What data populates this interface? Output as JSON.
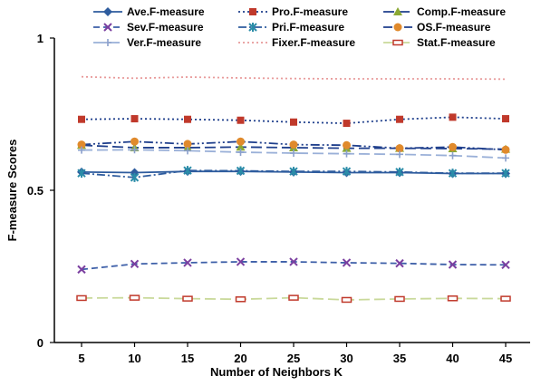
{
  "chart_data": {
    "type": "line",
    "xlabel": "Number of Neighbors K",
    "ylabel": "F-measure Scores",
    "x": [
      5,
      10,
      15,
      20,
      25,
      30,
      35,
      40,
      45
    ],
    "x_tick_labels": [
      "5",
      "10",
      "15",
      "20",
      "25",
      "30",
      "35",
      "40",
      "45"
    ],
    "ylim": [
      0,
      1
    ],
    "y_ticks": [
      0,
      0.5,
      1
    ],
    "y_tick_labels": [
      "0",
      "0.5",
      "1"
    ],
    "grid": false,
    "legend_position": "top",
    "series": [
      {
        "name": "Ave.F-measure",
        "color": "#2e5c9e",
        "dash": "solid",
        "marker": "diamond",
        "values": [
          0.56,
          0.558,
          0.562,
          0.562,
          0.56,
          0.558,
          0.558,
          0.555,
          0.555
        ]
      },
      {
        "name": "Pro.F-measure",
        "color": "#1f3f8c",
        "dash": "dot",
        "marker": "square-filled",
        "markerColor": "#c0392b",
        "values": [
          0.733,
          0.735,
          0.733,
          0.73,
          0.724,
          0.72,
          0.733,
          0.74,
          0.735
        ]
      },
      {
        "name": "Comp.F-measure",
        "color": "#1f3f8c",
        "dash": "longdash",
        "marker": "triangle",
        "markerColor": "#8aa833",
        "values": [
          0.648,
          0.64,
          0.64,
          0.642,
          0.64,
          0.638,
          0.638,
          0.637,
          0.635
        ]
      },
      {
        "name": "Sev.F-measure",
        "color": "#3d5fa8",
        "dash": "dash",
        "marker": "x",
        "markerColor": "#7b3fa0",
        "values": [
          0.24,
          0.258,
          0.262,
          0.265,
          0.265,
          0.262,
          0.26,
          0.256,
          0.255
        ]
      },
      {
        "name": "Pri.F-measure",
        "color": "#2e5c9e",
        "dash": "dashdot",
        "marker": "star",
        "markerColor": "#2a8ca8",
        "values": [
          0.556,
          0.542,
          0.565,
          0.564,
          0.562,
          0.562,
          0.56,
          0.556,
          0.556
        ]
      },
      {
        "name": "OS.F-measure",
        "color": "#1f3f8c",
        "dash": "dashdotdot",
        "marker": "circle",
        "markerColor": "#e08a2c",
        "values": [
          0.65,
          0.66,
          0.652,
          0.66,
          0.65,
          0.648,
          0.638,
          0.642,
          0.633
        ]
      },
      {
        "name": "Ver.F-measure",
        "color": "#9ab0d8",
        "dash": "longdash",
        "marker": "plus",
        "markerColor": "#8aa0cc",
        "values": [
          0.632,
          0.633,
          0.63,
          0.625,
          0.622,
          0.62,
          0.618,
          0.614,
          0.606
        ]
      },
      {
        "name": "Fixer.F-measure",
        "color": "#e89a9a",
        "dash": "dot",
        "marker": "none",
        "values": [
          0.873,
          0.868,
          0.872,
          0.869,
          0.867,
          0.866,
          0.866,
          0.866,
          0.865
        ]
      },
      {
        "name": "Stat.F-measure",
        "color": "#c9d99a",
        "dash": "longdash",
        "marker": "rect-outline",
        "markerColor": "#c0392b",
        "values": [
          0.146,
          0.147,
          0.144,
          0.142,
          0.147,
          0.14,
          0.143,
          0.145,
          0.144
        ]
      }
    ]
  }
}
